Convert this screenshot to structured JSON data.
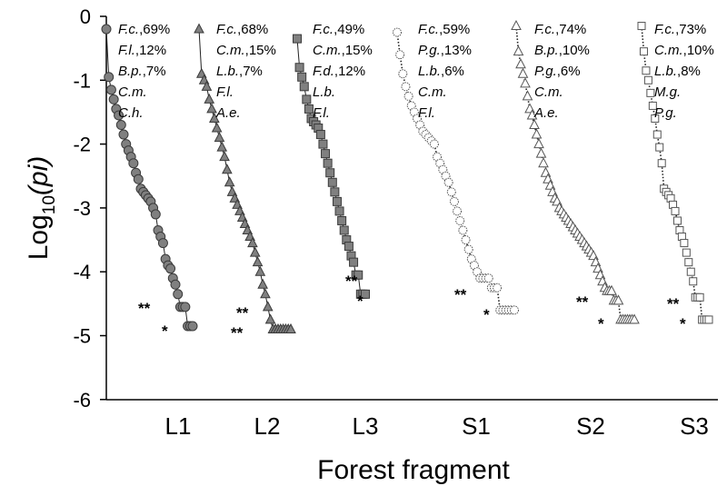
{
  "chart_data": {
    "type": "scatter",
    "xlabel": "Forest fragment",
    "ylabel_main": "Log",
    "ylabel_sub": "10",
    "ylabel_paren": "(pi)",
    "ylim": [
      -6,
      0
    ],
    "yticks": [
      0,
      -1,
      -2,
      -3,
      -4,
      -5,
      -6
    ],
    "ytick_labels": [
      "0",
      "-1",
      "-2",
      "-3",
      "-4",
      "-5",
      "-6"
    ],
    "grid": false,
    "series": [
      {
        "name": "L1",
        "marker": "circle-filled",
        "line": "solid",
        "values": [
          -0.2,
          -0.95,
          -1.15,
          -1.3,
          -1.45,
          -1.55,
          -1.7,
          -1.85,
          -2.0,
          -2.1,
          -2.2,
          -2.3,
          -2.45,
          -2.55,
          -2.7,
          -2.75,
          -2.8,
          -2.85,
          -2.9,
          -3.0,
          -3.1,
          -3.35,
          -3.45,
          -3.55,
          -3.8,
          -3.9,
          -3.95,
          -4.1,
          -4.2,
          -4.35,
          -4.55,
          -4.55,
          -4.55,
          -4.85,
          -4.85,
          -4.85
        ],
        "annotations": [
          {
            "sp": "F.c.",
            "pct": "69%"
          },
          {
            "sp": "F.l.",
            "pct": "12%"
          },
          {
            "sp": "B.p.",
            "pct": "7%"
          },
          {
            "sp": "C.m.",
            "pct": ""
          },
          {
            "sp": "C.h.",
            "pct": ""
          }
        ],
        "singles_mark": "*",
        "doubles_mark": "**"
      },
      {
        "name": "L2",
        "marker": "triangle-filled",
        "line": "solid",
        "values": [
          -0.2,
          -0.9,
          -1.0,
          -1.1,
          -1.3,
          -1.45,
          -1.6,
          -1.75,
          -1.9,
          -2.05,
          -2.2,
          -2.4,
          -2.6,
          -2.75,
          -2.85,
          -2.95,
          -3.05,
          -3.15,
          -3.25,
          -3.35,
          -3.45,
          -3.55,
          -3.7,
          -3.85,
          -4.0,
          -4.2,
          -4.35,
          -4.55,
          -4.75,
          -4.9,
          -4.9,
          -4.9,
          -4.9,
          -4.9,
          -4.9,
          -4.9,
          -4.9
        ],
        "annotations": [
          {
            "sp": "F.c.",
            "pct": "68%"
          },
          {
            "sp": "C.m.",
            "pct": "15%"
          },
          {
            "sp": "L.b.",
            "pct": "7%"
          },
          {
            "sp": "F.l.",
            "pct": ""
          },
          {
            "sp": "A.e.",
            "pct": ""
          }
        ],
        "singles_mark": "**",
        "doubles_mark": "**"
      },
      {
        "name": "L3",
        "marker": "square-filled",
        "line": "solid",
        "values": [
          -0.35,
          -0.8,
          -0.95,
          -1.1,
          -1.3,
          -1.45,
          -1.6,
          -1.65,
          -1.7,
          -1.75,
          -1.85,
          -2.0,
          -2.15,
          -2.3,
          -2.45,
          -2.6,
          -2.75,
          -2.9,
          -3.05,
          -3.2,
          -3.35,
          -3.5,
          -3.6,
          -3.75,
          -3.85,
          -4.05,
          -4.05,
          -4.35,
          -4.35,
          -4.35
        ],
        "annotations": [
          {
            "sp": "F.c.",
            "pct": "49%"
          },
          {
            "sp": "C.m.",
            "pct": "15%"
          },
          {
            "sp": "F.d.",
            "pct": "12%"
          },
          {
            "sp": "L.b.",
            "pct": ""
          },
          {
            "sp": "F.l.",
            "pct": ""
          }
        ],
        "singles_mark": "*",
        "doubles_mark": "**"
      },
      {
        "name": "S1",
        "marker": "circle-dotted",
        "line": "dotted",
        "values": [
          -0.25,
          -0.6,
          -0.9,
          -1.1,
          -1.25,
          -1.4,
          -1.5,
          -1.6,
          -1.7,
          -1.8,
          -1.85,
          -1.9,
          -1.95,
          -2.0,
          -2.2,
          -2.3,
          -2.4,
          -2.5,
          -2.6,
          -2.75,
          -2.9,
          -3.05,
          -3.2,
          -3.35,
          -3.5,
          -3.65,
          -3.8,
          -3.9,
          -4.0,
          -4.1,
          -4.1,
          -4.1,
          -4.1,
          -4.25,
          -4.25,
          -4.25,
          -4.6,
          -4.6,
          -4.6,
          -4.6,
          -4.6,
          -4.6
        ],
        "annotations": [
          {
            "sp": "F.c.",
            "pct": "59%"
          },
          {
            "sp": "P.g.",
            "pct": "13%"
          },
          {
            "sp": "L.b.",
            "pct": "6%"
          },
          {
            "sp": "C.m.",
            "pct": ""
          },
          {
            "sp": "F.l.",
            "pct": ""
          }
        ],
        "singles_mark": "*",
        "doubles_mark": "**"
      },
      {
        "name": "S2",
        "marker": "triangle-open",
        "line": "dotted",
        "values": [
          -0.15,
          -0.55,
          -0.75,
          -0.9,
          -1.05,
          -1.25,
          -1.45,
          -1.55,
          -1.7,
          -1.85,
          -2.0,
          -2.15,
          -2.3,
          -2.45,
          -2.55,
          -2.65,
          -2.75,
          -2.85,
          -2.9,
          -3.0,
          -3.05,
          -3.1,
          -3.15,
          -3.2,
          -3.25,
          -3.3,
          -3.35,
          -3.4,
          -3.45,
          -3.5,
          -3.55,
          -3.6,
          -3.65,
          -3.7,
          -3.75,
          -3.85,
          -3.95,
          -4.05,
          -4.15,
          -4.25,
          -4.3,
          -4.3,
          -4.3,
          -4.45,
          -4.45,
          -4.45,
          -4.75,
          -4.75,
          -4.75,
          -4.75,
          -4.75,
          -4.75,
          -4.75
        ],
        "annotations": [
          {
            "sp": "F.c.",
            "pct": "74%"
          },
          {
            "sp": "B.p.",
            "pct": "10%"
          },
          {
            "sp": "P.g.",
            "pct": "6%"
          },
          {
            "sp": "C.m.",
            "pct": ""
          },
          {
            "sp": "A.e.",
            "pct": ""
          }
        ],
        "singles_mark": "*",
        "doubles_mark": "**"
      },
      {
        "name": "S3",
        "marker": "square-open",
        "line": "dotted",
        "values": [
          -0.15,
          -0.55,
          -0.85,
          -1.0,
          -1.2,
          -1.4,
          -1.6,
          -1.85,
          -2.05,
          -2.3,
          -2.7,
          -2.75,
          -2.8,
          -2.85,
          -2.95,
          -3.05,
          -3.2,
          -3.35,
          -3.45,
          -3.55,
          -3.7,
          -3.85,
          -4.0,
          -4.15,
          -4.4,
          -4.4,
          -4.4,
          -4.75,
          -4.75,
          -4.75,
          -4.75
        ],
        "annotations": [
          {
            "sp": "F.c.",
            "pct": "73%"
          },
          {
            "sp": "C.m.",
            "pct": "10%"
          },
          {
            "sp": "L.b.",
            "pct": "8%"
          },
          {
            "sp": "M.g.",
            "pct": ""
          },
          {
            "sp": "P.g.",
            "pct": ""
          }
        ],
        "singles_mark": "*",
        "doubles_mark": "**"
      }
    ]
  }
}
